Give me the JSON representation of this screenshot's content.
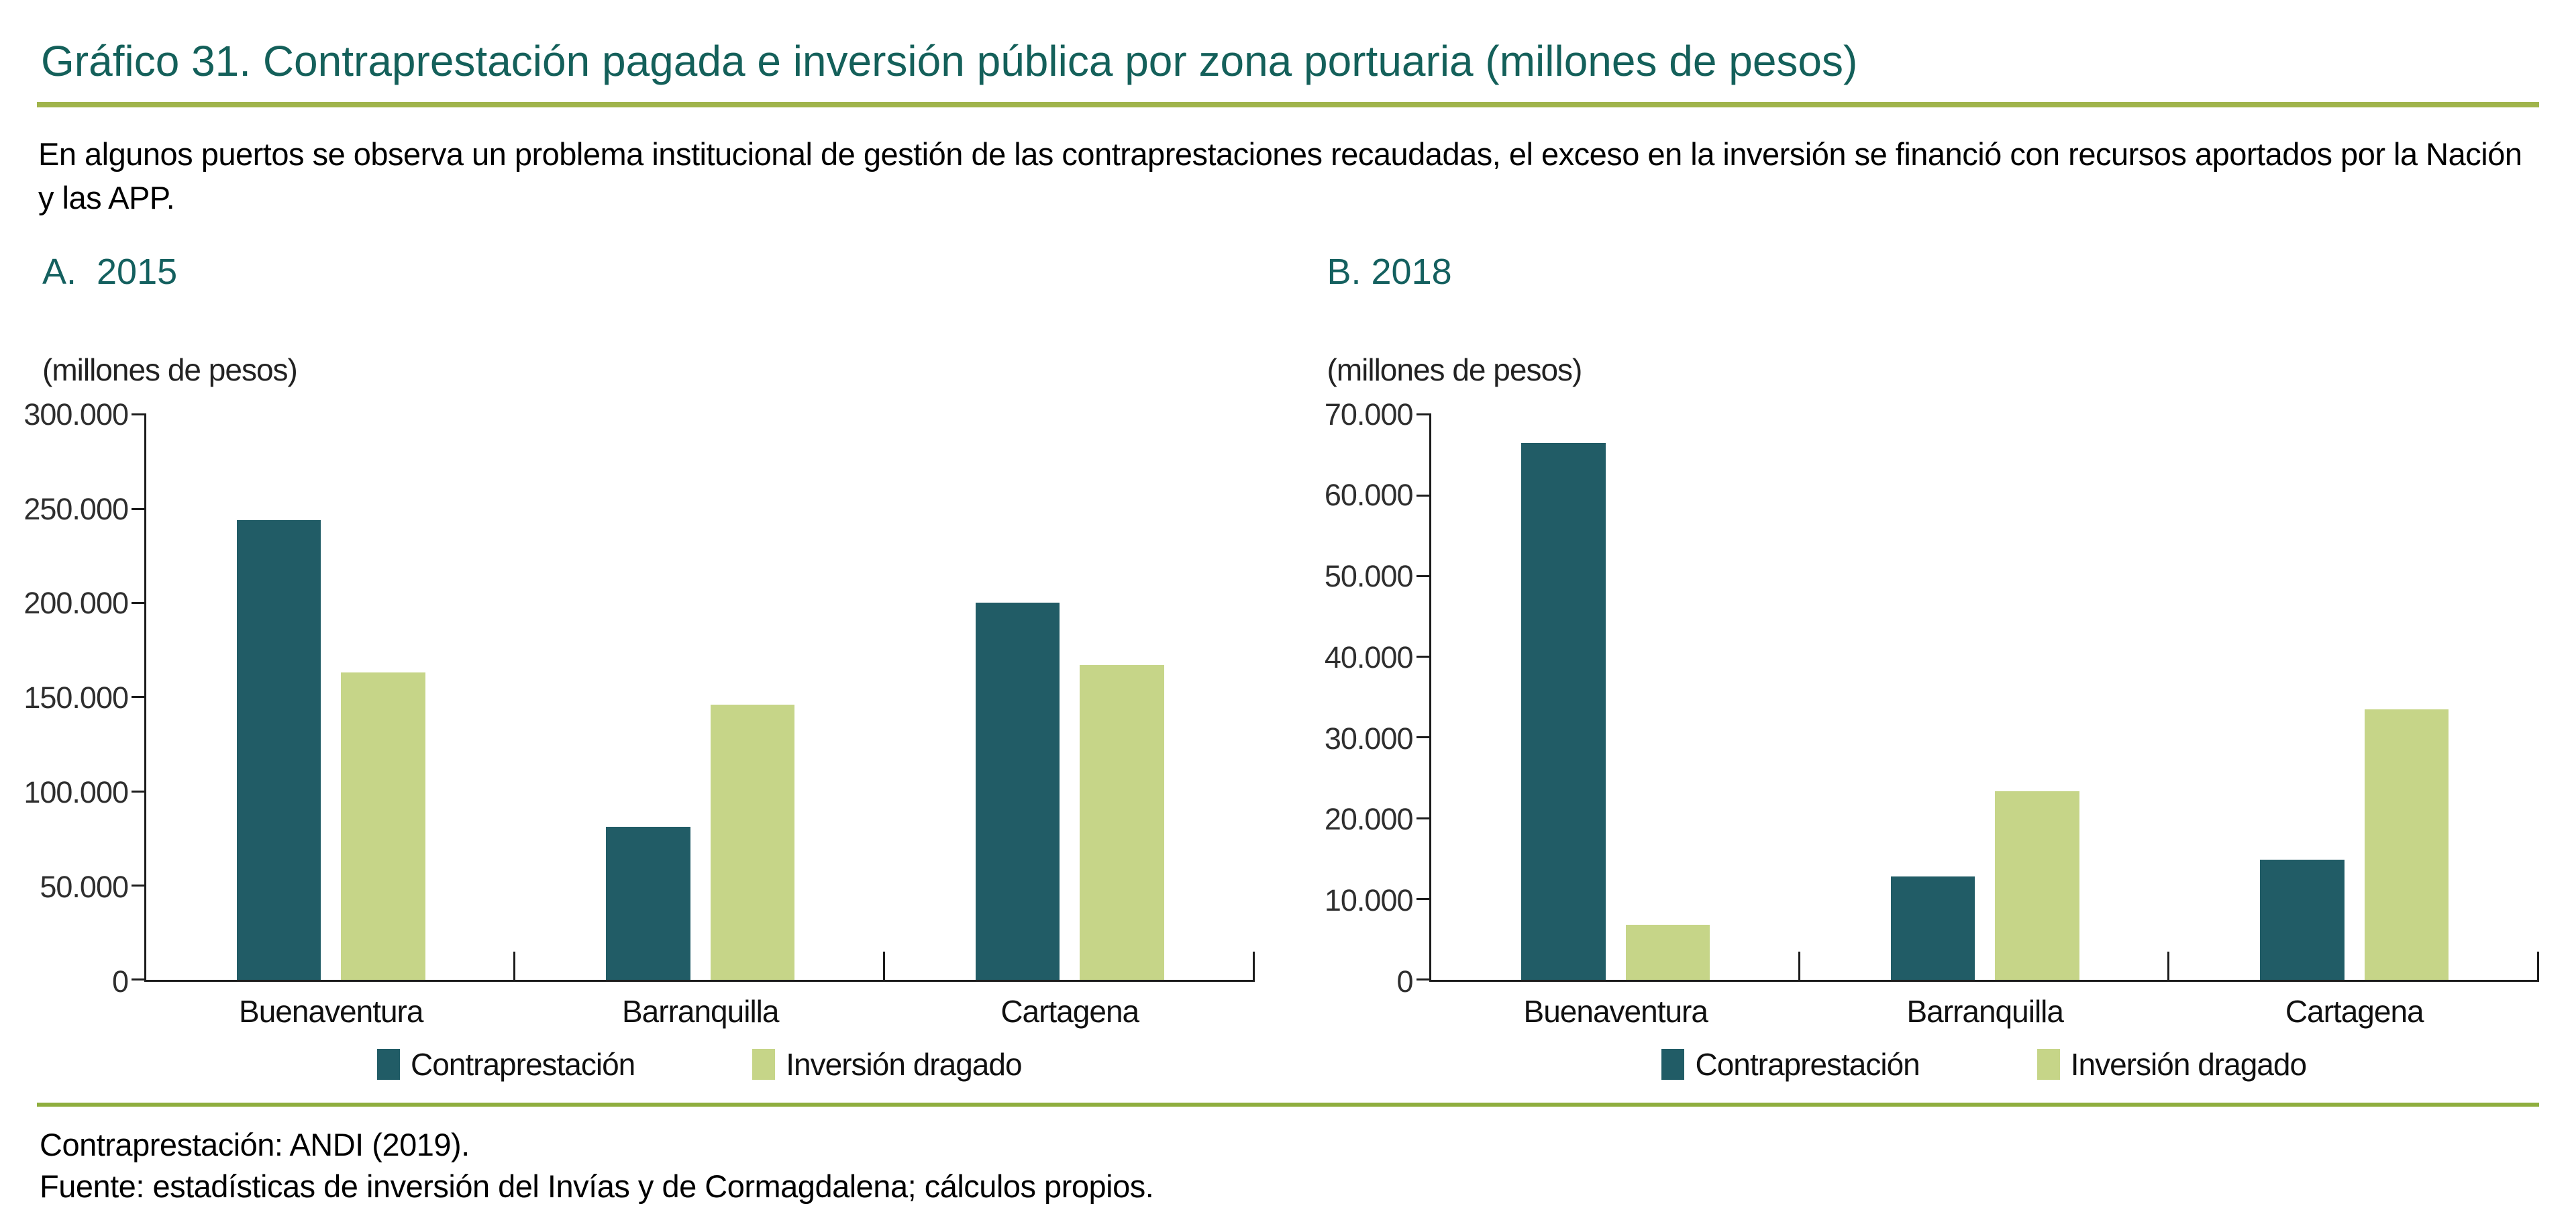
{
  "title": "Gráfico 31. Contraprestación pagada e inversión pública por zona portuaria (millones de pesos)",
  "subtitle_lines": [
    "En algunos puertos se observa un problema institucional de gestión de las contraprestaciones recaudadas, el exceso en la inversión se financió con recursos aportados por la Nación",
    "y las APP."
  ],
  "colors": {
    "bar_teal": "#215c66",
    "bar_green": "#c6d588",
    "heading_teal": "#14605a",
    "rule_top": "#a0b44b",
    "rule_bottom": "#8fae3e",
    "axis_line": "#1c1c1c"
  },
  "chart_data": [
    {
      "type": "bar",
      "panel_label": "A.  2015",
      "axis_unit": "(millones de pesos)",
      "categories": [
        "Buenaventura",
        "Barranquilla",
        "Cartagena"
      ],
      "series": [
        {
          "name": "Contraprestación",
          "color_key": "teal",
          "values": [
            244000,
            81000,
            200000
          ]
        },
        {
          "name": "Inversión dragado",
          "color_key": "green",
          "values": [
            163000,
            146000,
            167000
          ]
        }
      ],
      "ylim": [
        0,
        300000
      ],
      "ytick_step": 50000,
      "ytick_labels": [
        "0",
        "50.000",
        "100.000",
        "150.000",
        "200.000",
        "250.000",
        "300.000"
      ],
      "grid": false,
      "legend_position": "bottom",
      "legend": [
        "Contraprestación",
        "Inversión dragado"
      ]
    },
    {
      "type": "bar",
      "panel_label": "B. 2018",
      "axis_unit": "(millones de pesos)",
      "categories": [
        "Buenaventura",
        "Barranquilla",
        "Cartagena"
      ],
      "series": [
        {
          "name": "Contraprestación",
          "color_key": "teal",
          "values": [
            66500,
            12800,
            14900
          ]
        },
        {
          "name": "Inversión dragado",
          "color_key": "green",
          "values": [
            6800,
            23300,
            33500
          ]
        }
      ],
      "ylim": [
        0,
        70000
      ],
      "ytick_step": 10000,
      "ytick_labels": [
        "0",
        "10.000",
        "20.000",
        "30.000",
        "40.000",
        "50.000",
        "60.000",
        "70.000"
      ],
      "grid": false,
      "legend_position": "bottom",
      "legend": [
        "Contraprestación",
        "Inversión dragado"
      ]
    }
  ],
  "footer": {
    "line1": "Contraprestación: ANDI (2019).",
    "line2": "Fuente: estadísticas de inversión del Invías y de Cormagdalena; cálculos propios."
  }
}
